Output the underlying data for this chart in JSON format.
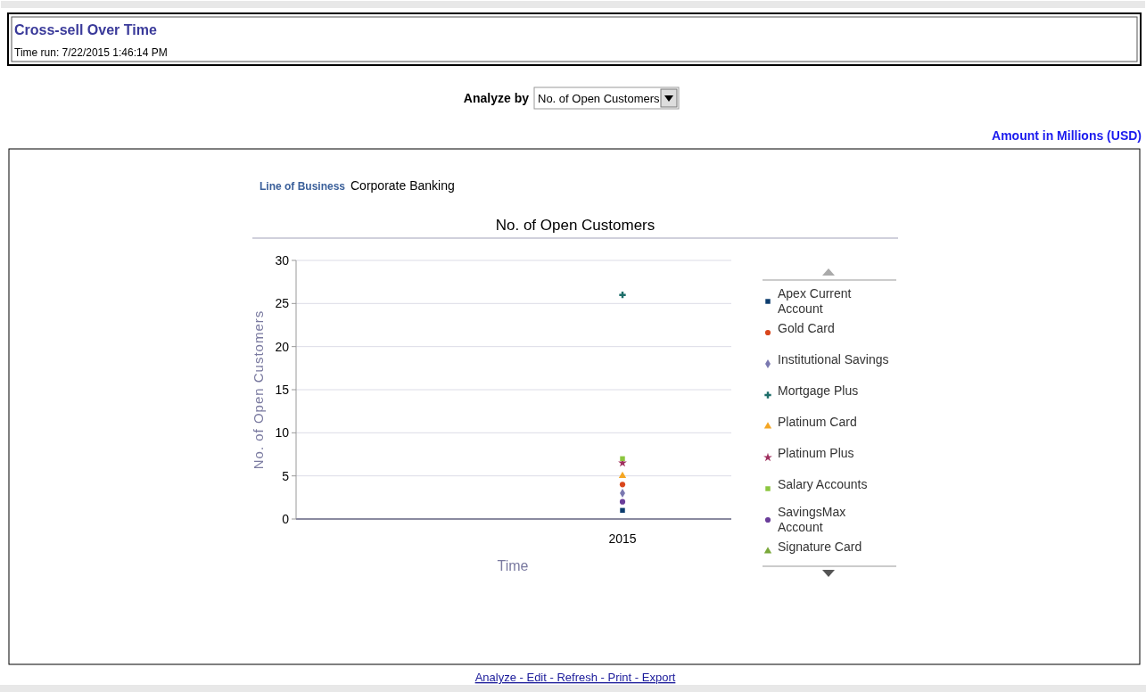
{
  "chart_data": {
    "type": "scatter",
    "title": "Cross-sell Over Time",
    "subtitle": "Time run: 7/22/2015 1:46:14 PM",
    "xlabel": "Time",
    "ylabel": "No. of Open Customers",
    "categories": [
      "2015"
    ],
    "series": [
      {
        "name": "Apex Current Account",
        "color": "#0d3d6e",
        "marker": "square",
        "values": [
          1
        ]
      },
      {
        "name": "Gold Card",
        "color": "#d9461c",
        "marker": "circle",
        "values": [
          4
        ]
      },
      {
        "name": "Institutional Savings",
        "color": "#7a78b0",
        "marker": "diamond",
        "values": [
          3
        ]
      },
      {
        "name": "Mortgage Plus",
        "color": "#1e6e6a",
        "marker": "cross",
        "values": [
          26
        ]
      },
      {
        "name": "Platinum Card",
        "color": "#f5a623",
        "marker": "triangle",
        "values": [
          5
        ]
      },
      {
        "name": "Platinum Plus",
        "color": "#a0305f",
        "marker": "star",
        "values": [
          6.5
        ]
      },
      {
        "name": "Salary Accounts",
        "color": "#8cc63f",
        "marker": "square",
        "values": [
          7
        ]
      },
      {
        "name": "SavingsMax Account",
        "color": "#6a3d9a",
        "marker": "circle",
        "values": [
          2
        ]
      },
      {
        "name": "Signature Card",
        "color": "#7aa83a",
        "marker": "triangle",
        "values": [
          null
        ]
      }
    ],
    "ylim": [
      0,
      30
    ],
    "yticks": [
      0,
      5,
      10,
      15,
      20,
      25,
      30
    ],
    "grid": "y",
    "legend": "right",
    "annotations": [
      "Analyze by",
      "No. of Open Customers",
      "Amount in Millions (USD)",
      "Line of Business",
      "Corporate Banking",
      "No. of Open Customers",
      "Analyze - Edit - Refresh - Print - Export"
    ]
  }
}
